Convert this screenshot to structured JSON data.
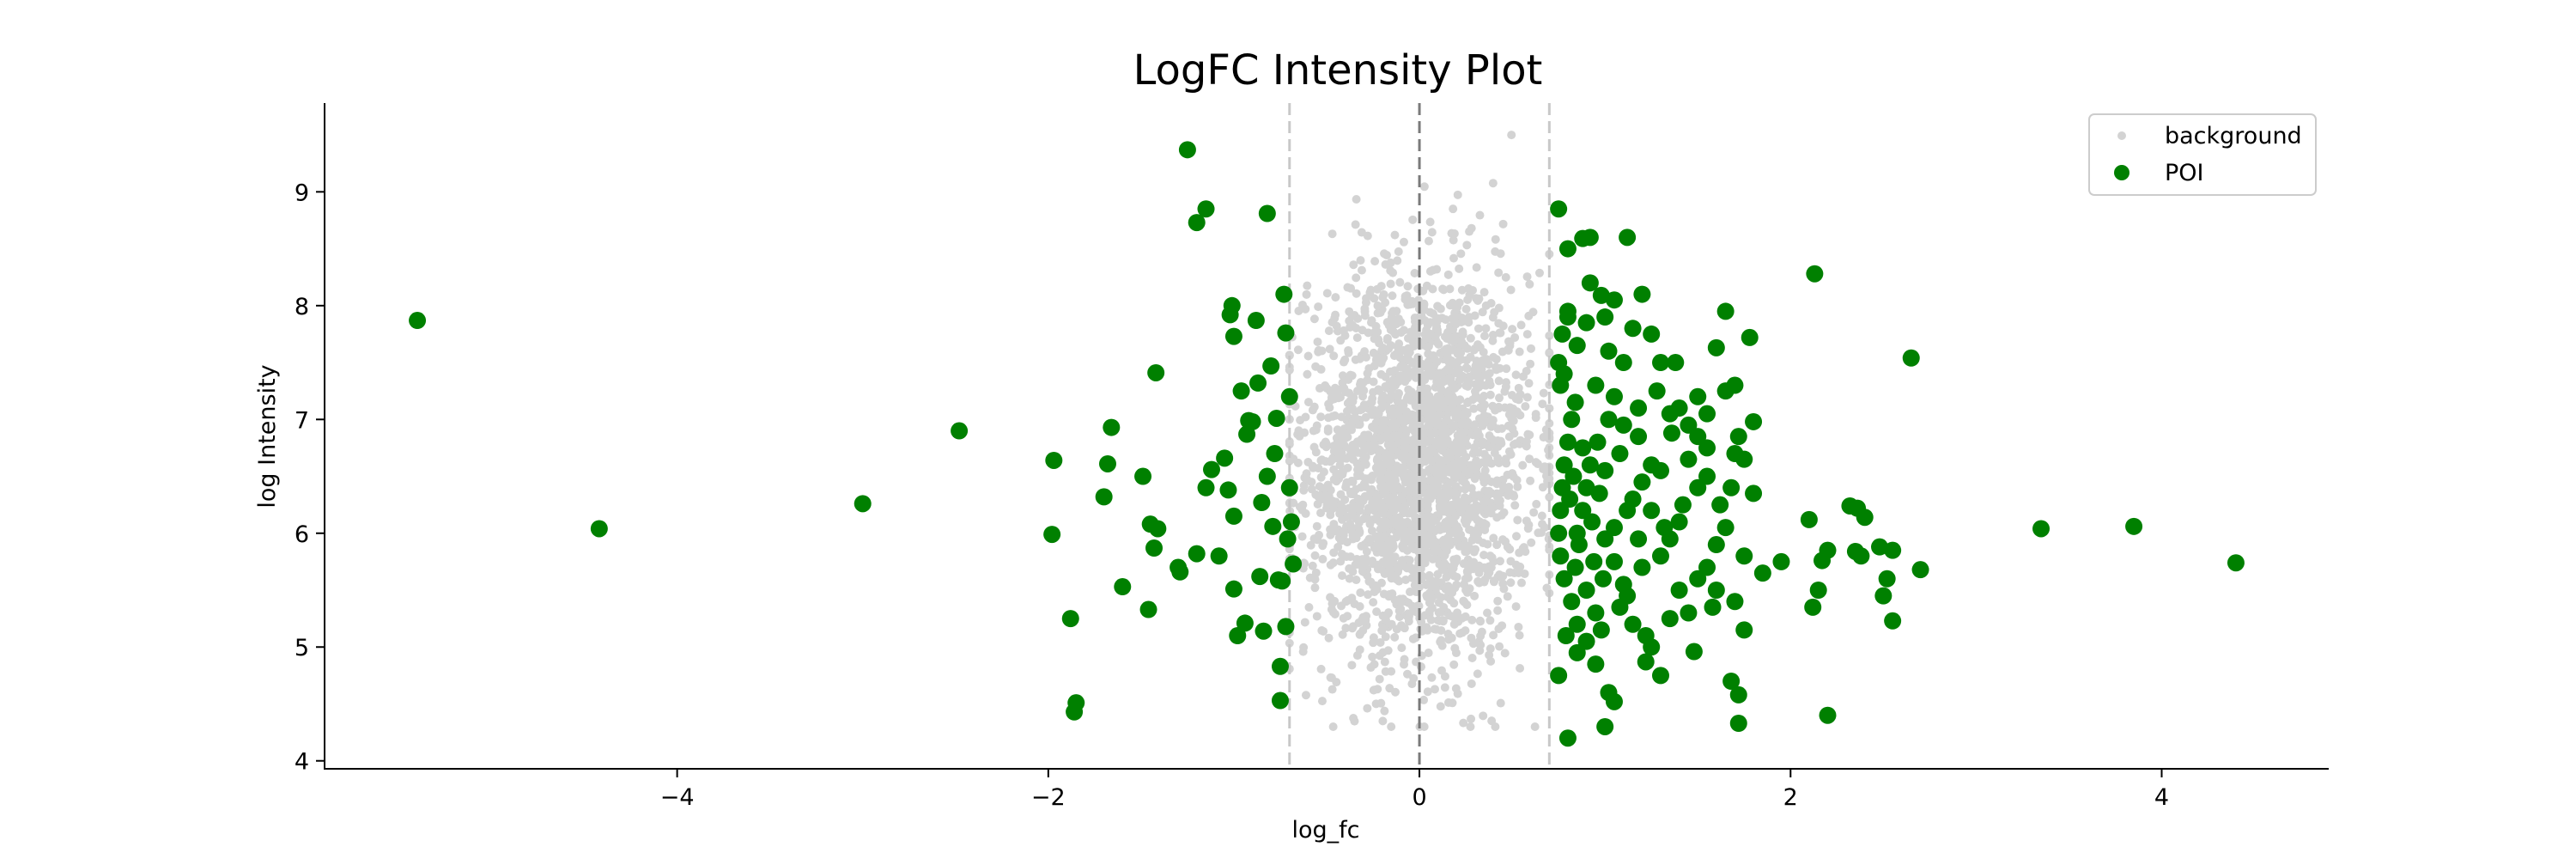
{
  "chart_data": {
    "type": "scatter",
    "title": "LogFC Intensity Plot",
    "xlabel": "log_fc",
    "ylabel": "log Intensity",
    "xlim": [
      -5.9,
      4.9
    ],
    "ylim": [
      3.93,
      9.78
    ],
    "xticks": [
      -4,
      -2,
      0,
      2,
      4
    ],
    "xtick_labels": [
      "−4",
      "−2",
      "0",
      "2",
      "4"
    ],
    "yticks": [
      4,
      5,
      6,
      7,
      8,
      9
    ],
    "ytick_labels": [
      "4",
      "5",
      "6",
      "7",
      "8",
      "9"
    ],
    "threshold_lines": {
      "center": 0,
      "thresholds": [
        -0.7,
        0.7
      ]
    },
    "legend": {
      "position": "top-right",
      "entries": [
        {
          "name": "background",
          "color": "#d3d3d3",
          "marker": "small-circle"
        },
        {
          "name": "POI",
          "color": "#008000",
          "marker": "circle"
        }
      ]
    },
    "grid": false,
    "series": [
      {
        "name": "background",
        "color": "#d3d3d3",
        "count": 2600,
        "x_range": [
          -0.7,
          0.7
        ],
        "x_std": 0.3,
        "y_mean": 6.6,
        "y_std": 0.85,
        "y_range": [
          4.3,
          9.5
        ]
      },
      {
        "name": "POI",
        "color": "#008000",
        "points": [
          [
            -5.4,
            7.87
          ],
          [
            -4.42,
            6.04
          ],
          [
            -3.0,
            6.26
          ],
          [
            -2.48,
            6.9
          ],
          [
            -1.97,
            6.64
          ],
          [
            -1.98,
            5.99
          ],
          [
            -1.86,
            4.43
          ],
          [
            -1.85,
            4.51
          ],
          [
            -1.88,
            5.25
          ],
          [
            -1.7,
            6.32
          ],
          [
            -1.68,
            6.61
          ],
          [
            -1.66,
            6.93
          ],
          [
            -1.6,
            5.53
          ],
          [
            -1.49,
            6.5
          ],
          [
            -1.46,
            5.33
          ],
          [
            -1.45,
            6.08
          ],
          [
            -1.43,
            5.87
          ],
          [
            -1.42,
            7.41
          ],
          [
            -1.41,
            6.04
          ],
          [
            -1.3,
            5.7
          ],
          [
            -1.29,
            5.66
          ],
          [
            -1.25,
            9.37
          ],
          [
            -1.2,
            8.73
          ],
          [
            -1.15,
            8.85
          ],
          [
            -1.2,
            5.82
          ],
          [
            -1.15,
            6.4
          ],
          [
            -1.12,
            6.56
          ],
          [
            -1.05,
            6.66
          ],
          [
            -1.03,
            6.38
          ],
          [
            -1.02,
            7.92
          ],
          [
            -1.01,
            8.0
          ],
          [
            -1.0,
            7.73
          ],
          [
            -1.0,
            5.51
          ],
          [
            -0.98,
            5.1
          ],
          [
            -0.94,
            5.21
          ],
          [
            -0.92,
            6.99
          ],
          [
            -0.88,
            7.87
          ],
          [
            -0.86,
            5.62
          ],
          [
            -0.84,
            5.14
          ],
          [
            -0.82,
            8.81
          ],
          [
            -0.8,
            7.47
          ],
          [
            -0.78,
            6.7
          ],
          [
            -0.76,
            5.59
          ],
          [
            -0.74,
            5.58
          ],
          [
            -0.72,
            5.18
          ],
          [
            -0.72,
            7.76
          ],
          [
            -0.7,
            7.2
          ],
          [
            -0.69,
            6.1
          ],
          [
            -0.68,
            5.73
          ],
          [
            -0.75,
            4.83
          ],
          [
            -0.75,
            4.53
          ],
          [
            -0.82,
            6.5
          ],
          [
            -0.9,
            6.98
          ],
          [
            -0.96,
            7.25
          ],
          [
            -1.08,
            5.8
          ],
          [
            -0.85,
            6.27
          ],
          [
            -0.79,
            6.06
          ],
          [
            -0.71,
            5.95
          ],
          [
            -0.7,
            6.4
          ],
          [
            -0.77,
            7.01
          ],
          [
            -0.87,
            7.32
          ],
          [
            -0.93,
            6.87
          ],
          [
            -0.73,
            8.1
          ],
          [
            -1.0,
            6.15
          ],
          [
            0.75,
            8.85
          ],
          [
            0.8,
            8.5
          ],
          [
            0.88,
            8.59
          ],
          [
            0.92,
            8.6
          ],
          [
            1.12,
            8.6
          ],
          [
            0.92,
            8.2
          ],
          [
            0.98,
            8.09
          ],
          [
            1.05,
            8.05
          ],
          [
            1.2,
            8.1
          ],
          [
            0.8,
            7.95
          ],
          [
            0.9,
            7.85
          ],
          [
            1.0,
            7.9
          ],
          [
            1.15,
            7.8
          ],
          [
            1.25,
            7.75
          ],
          [
            1.3,
            7.5
          ],
          [
            1.1,
            7.5
          ],
          [
            1.02,
            7.6
          ],
          [
            0.85,
            7.65
          ],
          [
            0.78,
            7.4
          ],
          [
            0.95,
            7.3
          ],
          [
            1.05,
            7.2
          ],
          [
            1.18,
            7.1
          ],
          [
            1.35,
            7.05
          ],
          [
            1.4,
            7.1
          ],
          [
            1.45,
            6.95
          ],
          [
            1.5,
            6.85
          ],
          [
            1.55,
            6.75
          ],
          [
            1.7,
            6.7
          ],
          [
            1.75,
            6.65
          ],
          [
            1.72,
            6.85
          ],
          [
            1.8,
            6.98
          ],
          [
            1.65,
            7.25
          ],
          [
            1.7,
            7.3
          ],
          [
            1.78,
            7.72
          ],
          [
            1.6,
            7.63
          ],
          [
            1.65,
            7.95
          ],
          [
            2.13,
            8.28
          ],
          [
            2.65,
            7.54
          ],
          [
            1.85,
            5.65
          ],
          [
            1.95,
            5.75
          ],
          [
            2.1,
            6.12
          ],
          [
            2.32,
            6.24
          ],
          [
            2.36,
            6.22
          ],
          [
            2.4,
            6.14
          ],
          [
            2.35,
            5.84
          ],
          [
            2.38,
            5.8
          ],
          [
            2.48,
            5.88
          ],
          [
            2.55,
            5.85
          ],
          [
            2.7,
            5.68
          ],
          [
            2.52,
            5.6
          ],
          [
            2.55,
            5.23
          ],
          [
            2.5,
            5.45
          ],
          [
            2.15,
            5.5
          ],
          [
            2.12,
            5.35
          ],
          [
            2.2,
            4.4
          ],
          [
            2.2,
            5.85
          ],
          [
            2.17,
            5.76
          ],
          [
            1.72,
            4.58
          ],
          [
            1.72,
            4.33
          ],
          [
            1.68,
            4.7
          ],
          [
            1.75,
            5.15
          ],
          [
            1.7,
            5.4
          ],
          [
            1.6,
            5.5
          ],
          [
            1.55,
            5.7
          ],
          [
            1.45,
            5.3
          ],
          [
            1.48,
            4.96
          ],
          [
            1.3,
            4.75
          ],
          [
            1.22,
            4.87
          ],
          [
            1.25,
            5.0
          ],
          [
            1.15,
            5.2
          ],
          [
            1.08,
            5.35
          ],
          [
            1.1,
            5.55
          ],
          [
            1.2,
            5.7
          ],
          [
            1.3,
            5.8
          ],
          [
            1.35,
            5.95
          ],
          [
            1.4,
            6.1
          ],
          [
            1.42,
            6.25
          ],
          [
            1.5,
            6.4
          ],
          [
            1.55,
            6.5
          ],
          [
            1.3,
            6.55
          ],
          [
            1.25,
            6.6
          ],
          [
            1.2,
            6.45
          ],
          [
            1.15,
            6.3
          ],
          [
            1.12,
            6.2
          ],
          [
            1.05,
            6.05
          ],
          [
            1.02,
            4.6
          ],
          [
            1.0,
            4.3
          ],
          [
            1.05,
            4.52
          ],
          [
            0.95,
            4.85
          ],
          [
            0.9,
            5.05
          ],
          [
            0.85,
            5.2
          ],
          [
            0.82,
            5.4
          ],
          [
            0.78,
            5.6
          ],
          [
            0.76,
            5.8
          ],
          [
            0.75,
            6.0
          ],
          [
            0.76,
            6.2
          ],
          [
            0.77,
            6.4
          ],
          [
            0.78,
            6.6
          ],
          [
            0.8,
            6.8
          ],
          [
            0.82,
            7.0
          ],
          [
            0.84,
            7.15
          ],
          [
            0.76,
            7.3
          ],
          [
            0.75,
            7.5
          ],
          [
            0.77,
            7.75
          ],
          [
            0.8,
            7.9
          ],
          [
            0.85,
            6.0
          ],
          [
            0.88,
            6.2
          ],
          [
            0.9,
            6.4
          ],
          [
            0.92,
            6.6
          ],
          [
            0.88,
            6.75
          ],
          [
            0.86,
            5.9
          ],
          [
            0.84,
            5.7
          ],
          [
            0.9,
            5.5
          ],
          [
            0.95,
            5.3
          ],
          [
            0.98,
            5.15
          ],
          [
            0.93,
            6.1
          ],
          [
            0.97,
            6.35
          ],
          [
            1.0,
            6.55
          ],
          [
            0.96,
            6.8
          ],
          [
            1.02,
            7.0
          ],
          [
            1.0,
            5.95
          ],
          [
            0.94,
            5.75
          ],
          [
            0.81,
            6.3
          ],
          [
            0.83,
            6.5
          ],
          [
            0.79,
            5.1
          ],
          [
            0.85,
            4.95
          ],
          [
            0.8,
            4.2
          ],
          [
            0.75,
            4.75
          ],
          [
            1.35,
            5.25
          ],
          [
            1.4,
            5.5
          ],
          [
            1.6,
            5.9
          ],
          [
            1.65,
            6.05
          ],
          [
            1.75,
            5.8
          ],
          [
            1.8,
            6.35
          ],
          [
            1.68,
            6.4
          ],
          [
            1.55,
            7.05
          ],
          [
            1.5,
            7.2
          ],
          [
            1.38,
            7.5
          ],
          [
            1.28,
            7.25
          ],
          [
            1.1,
            6.95
          ],
          [
            1.08,
            6.7
          ],
          [
            1.18,
            6.85
          ],
          [
            1.25,
            6.2
          ],
          [
            1.32,
            6.05
          ],
          [
            1.18,
            5.95
          ],
          [
            1.05,
            5.75
          ],
          [
            0.99,
            5.6
          ],
          [
            1.12,
            5.45
          ],
          [
            1.22,
            5.1
          ],
          [
            1.5,
            5.6
          ],
          [
            1.58,
            5.35
          ],
          [
            1.62,
            6.25
          ],
          [
            1.45,
            6.65
          ],
          [
            1.36,
            6.88
          ],
          [
            3.35,
            6.04
          ],
          [
            3.85,
            6.06
          ],
          [
            4.4,
            5.74
          ]
        ]
      }
    ]
  }
}
